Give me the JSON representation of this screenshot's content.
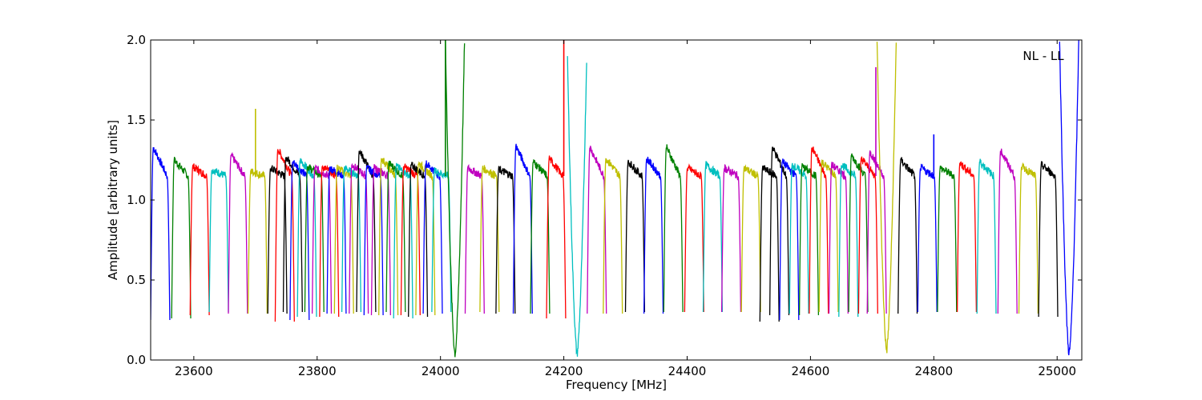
{
  "chart_data": {
    "type": "line",
    "title": "",
    "annotation": "NL - LL",
    "xlabel": "Frequency [MHz]",
    "ylabel": "Amplitude [arbitrary units]",
    "xlim": [
      23530,
      25040
    ],
    "ylim": [
      0.0,
      2.0
    ],
    "xticks": [
      23600,
      23800,
      24000,
      24200,
      24400,
      24600,
      24800,
      25000
    ],
    "yticks": [
      0.0,
      0.5,
      1.0,
      1.5,
      2.0
    ],
    "xtick_labels": [
      "23600",
      "23800",
      "24000",
      "24200",
      "24400",
      "24600",
      "24800",
      "25000"
    ],
    "ytick_labels": [
      "0.0",
      "0.5",
      "1.0",
      "1.5",
      "2.0"
    ],
    "grid": false,
    "legend": "none",
    "colors": [
      "#0000ff",
      "#008000",
      "#ff0000",
      "#00bfbf",
      "#bf00bf",
      "#bfbf00",
      "#000000"
    ],
    "band_width_mhz": 31,
    "bands": [
      {
        "start": 23530,
        "peak": 1.33,
        "min": 0.25,
        "color": "#0000ff"
      },
      {
        "start": 23564,
        "peak": 1.25,
        "min": 0.26,
        "color": "#008000"
      },
      {
        "start": 23594,
        "peak": 1.21,
        "min": 0.28,
        "color": "#ff0000"
      },
      {
        "start": 23625,
        "peak": 1.19,
        "min": 0.3,
        "color": "#00bfbf"
      },
      {
        "start": 23656,
        "peak": 1.28,
        "min": 0.29,
        "color": "#bf00bf"
      },
      {
        "start": 23688,
        "peak": 1.18,
        "min": 0.29,
        "color": "#bfbf00",
        "spike": {
          "x": 23700,
          "y": 1.57
        }
      },
      {
        "start": 23720,
        "peak": 1.2,
        "min": 0.29,
        "color": "#000000"
      },
      {
        "start": 23732,
        "peak": 1.32,
        "min": 0.24,
        "color": "#ff0000"
      },
      {
        "start": 23745,
        "peak": 1.27,
        "min": 0.3,
        "color": "#000000"
      },
      {
        "start": 23756,
        "peak": 1.24,
        "min": 0.25,
        "color": "#0000ff"
      },
      {
        "start": 23768,
        "peak": 1.25,
        "min": 0.27,
        "color": "#00bfbf"
      },
      {
        "start": 23780,
        "peak": 1.21,
        "min": 0.3,
        "color": "#008000"
      },
      {
        "start": 23792,
        "peak": 1.2,
        "min": 0.29,
        "color": "#bf00bf"
      },
      {
        "start": 23804,
        "peak": 1.21,
        "min": 0.27,
        "color": "#ff0000"
      },
      {
        "start": 23816,
        "peak": 1.2,
        "min": 0.29,
        "color": "#0000ff"
      },
      {
        "start": 23828,
        "peak": 1.2,
        "min": 0.29,
        "color": "#bfbf00"
      },
      {
        "start": 23840,
        "peak": 1.2,
        "min": 0.3,
        "color": "#00bfbf"
      },
      {
        "start": 23852,
        "peak": 1.22,
        "min": 0.29,
        "color": "#bf00bf"
      },
      {
        "start": 23864,
        "peak": 1.31,
        "min": 0.3,
        "color": "#000000"
      },
      {
        "start": 23876,
        "peak": 1.2,
        "min": 0.28,
        "color": "#0000ff"
      },
      {
        "start": 23888,
        "peak": 1.2,
        "min": 0.28,
        "color": "#bf00bf"
      },
      {
        "start": 23900,
        "peak": 1.26,
        "min": 0.28,
        "color": "#bfbf00"
      },
      {
        "start": 23912,
        "peak": 1.23,
        "min": 0.3,
        "color": "#008000"
      },
      {
        "start": 23924,
        "peak": 1.21,
        "min": 0.26,
        "color": "#00bfbf"
      },
      {
        "start": 23936,
        "peak": 1.21,
        "min": 0.28,
        "color": "#ff0000"
      },
      {
        "start": 23948,
        "peak": 1.22,
        "min": 0.27,
        "color": "#000000"
      },
      {
        "start": 23960,
        "peak": 1.23,
        "min": 0.28,
        "color": "#bfbf00"
      },
      {
        "start": 23972,
        "peak": 1.23,
        "min": 0.29,
        "color": "#0000ff"
      },
      {
        "start": 23986,
        "peak": 1.18,
        "min": 0.3,
        "color": "#00bfbf"
      },
      {
        "start": 24008,
        "peak": 2.0,
        "min": 0.04,
        "color": "#008000",
        "deep": true,
        "spike": {
          "x": 24008,
          "y": 2.0
        }
      },
      {
        "start": 24040,
        "peak": 1.2,
        "min": 0.29,
        "color": "#bf00bf"
      },
      {
        "start": 24064,
        "peak": 1.2,
        "min": 0.3,
        "color": "#bfbf00"
      },
      {
        "start": 24090,
        "peak": 1.19,
        "min": 0.29,
        "color": "#000000"
      },
      {
        "start": 24118,
        "peak": 1.34,
        "min": 0.29,
        "color": "#0000ff"
      },
      {
        "start": 24146,
        "peak": 1.24,
        "min": 0.29,
        "color": "#008000"
      },
      {
        "start": 24172,
        "peak": 1.26,
        "min": 0.26,
        "color": "#ff0000",
        "spike": {
          "x": 24200,
          "y": 2.0
        }
      },
      {
        "start": 24206,
        "peak": 1.88,
        "min": 0.04,
        "color": "#00bfbf",
        "deep": true
      },
      {
        "start": 24238,
        "peak": 1.33,
        "min": 0.29,
        "color": "#bf00bf"
      },
      {
        "start": 24264,
        "peak": 1.26,
        "min": 0.29,
        "color": "#bfbf00"
      },
      {
        "start": 24300,
        "peak": 1.24,
        "min": 0.3,
        "color": "#000000"
      },
      {
        "start": 24330,
        "peak": 1.26,
        "min": 0.29,
        "color": "#0000ff"
      },
      {
        "start": 24362,
        "peak": 1.33,
        "min": 0.3,
        "color": "#008000"
      },
      {
        "start": 24396,
        "peak": 1.2,
        "min": 0.3,
        "color": "#ff0000"
      },
      {
        "start": 24426,
        "peak": 1.22,
        "min": 0.3,
        "color": "#00bfbf"
      },
      {
        "start": 24456,
        "peak": 1.2,
        "min": 0.3,
        "color": "#bf00bf"
      },
      {
        "start": 24488,
        "peak": 1.2,
        "min": 0.3,
        "color": "#bfbf00"
      },
      {
        "start": 24518,
        "peak": 1.2,
        "min": 0.24,
        "color": "#000000"
      },
      {
        "start": 24534,
        "peak": 1.33,
        "min": 0.28,
        "color": "#000000"
      },
      {
        "start": 24550,
        "peak": 1.24,
        "min": 0.25,
        "color": "#0000ff"
      },
      {
        "start": 24566,
        "peak": 1.22,
        "min": 0.29,
        "color": "#00bfbf"
      },
      {
        "start": 24582,
        "peak": 1.21,
        "min": 0.28,
        "color": "#008000"
      },
      {
        "start": 24598,
        "peak": 1.33,
        "min": 0.29,
        "color": "#ff0000"
      },
      {
        "start": 24614,
        "peak": 1.24,
        "min": 0.3,
        "color": "#bfbf00"
      },
      {
        "start": 24630,
        "peak": 1.22,
        "min": 0.29,
        "color": "#bf00bf"
      },
      {
        "start": 24646,
        "peak": 1.22,
        "min": 0.27,
        "color": "#00bfbf"
      },
      {
        "start": 24662,
        "peak": 1.28,
        "min": 0.3,
        "color": "#008000"
      },
      {
        "start": 24678,
        "peak": 1.26,
        "min": 0.29,
        "color": "#ff0000"
      },
      {
        "start": 24692,
        "peak": 1.3,
        "min": 0.29,
        "color": "#bf00bf",
        "spike": {
          "x": 24706,
          "y": 1.83
        }
      },
      {
        "start": 24708,
        "peak": 2.0,
        "min": 0.06,
        "color": "#bfbf00",
        "deep": true
      },
      {
        "start": 24742,
        "peak": 1.25,
        "min": 0.29,
        "color": "#000000"
      },
      {
        "start": 24774,
        "peak": 1.2,
        "min": 0.3,
        "color": "#0000ff",
        "spike": {
          "x": 24800,
          "y": 1.41
        }
      },
      {
        "start": 24806,
        "peak": 1.2,
        "min": 0.3,
        "color": "#008000"
      },
      {
        "start": 24838,
        "peak": 1.23,
        "min": 0.3,
        "color": "#ff0000"
      },
      {
        "start": 24870,
        "peak": 1.24,
        "min": 0.29,
        "color": "#00bfbf"
      },
      {
        "start": 24904,
        "peak": 1.31,
        "min": 0.29,
        "color": "#bf00bf"
      },
      {
        "start": 24938,
        "peak": 1.21,
        "min": 0.29,
        "color": "#bfbf00"
      },
      {
        "start": 24970,
        "peak": 1.22,
        "min": 0.27,
        "color": "#000000"
      },
      {
        "start": 25004,
        "peak": 2.0,
        "min": 0.04,
        "color": "#0000ff",
        "deep": true
      }
    ]
  }
}
